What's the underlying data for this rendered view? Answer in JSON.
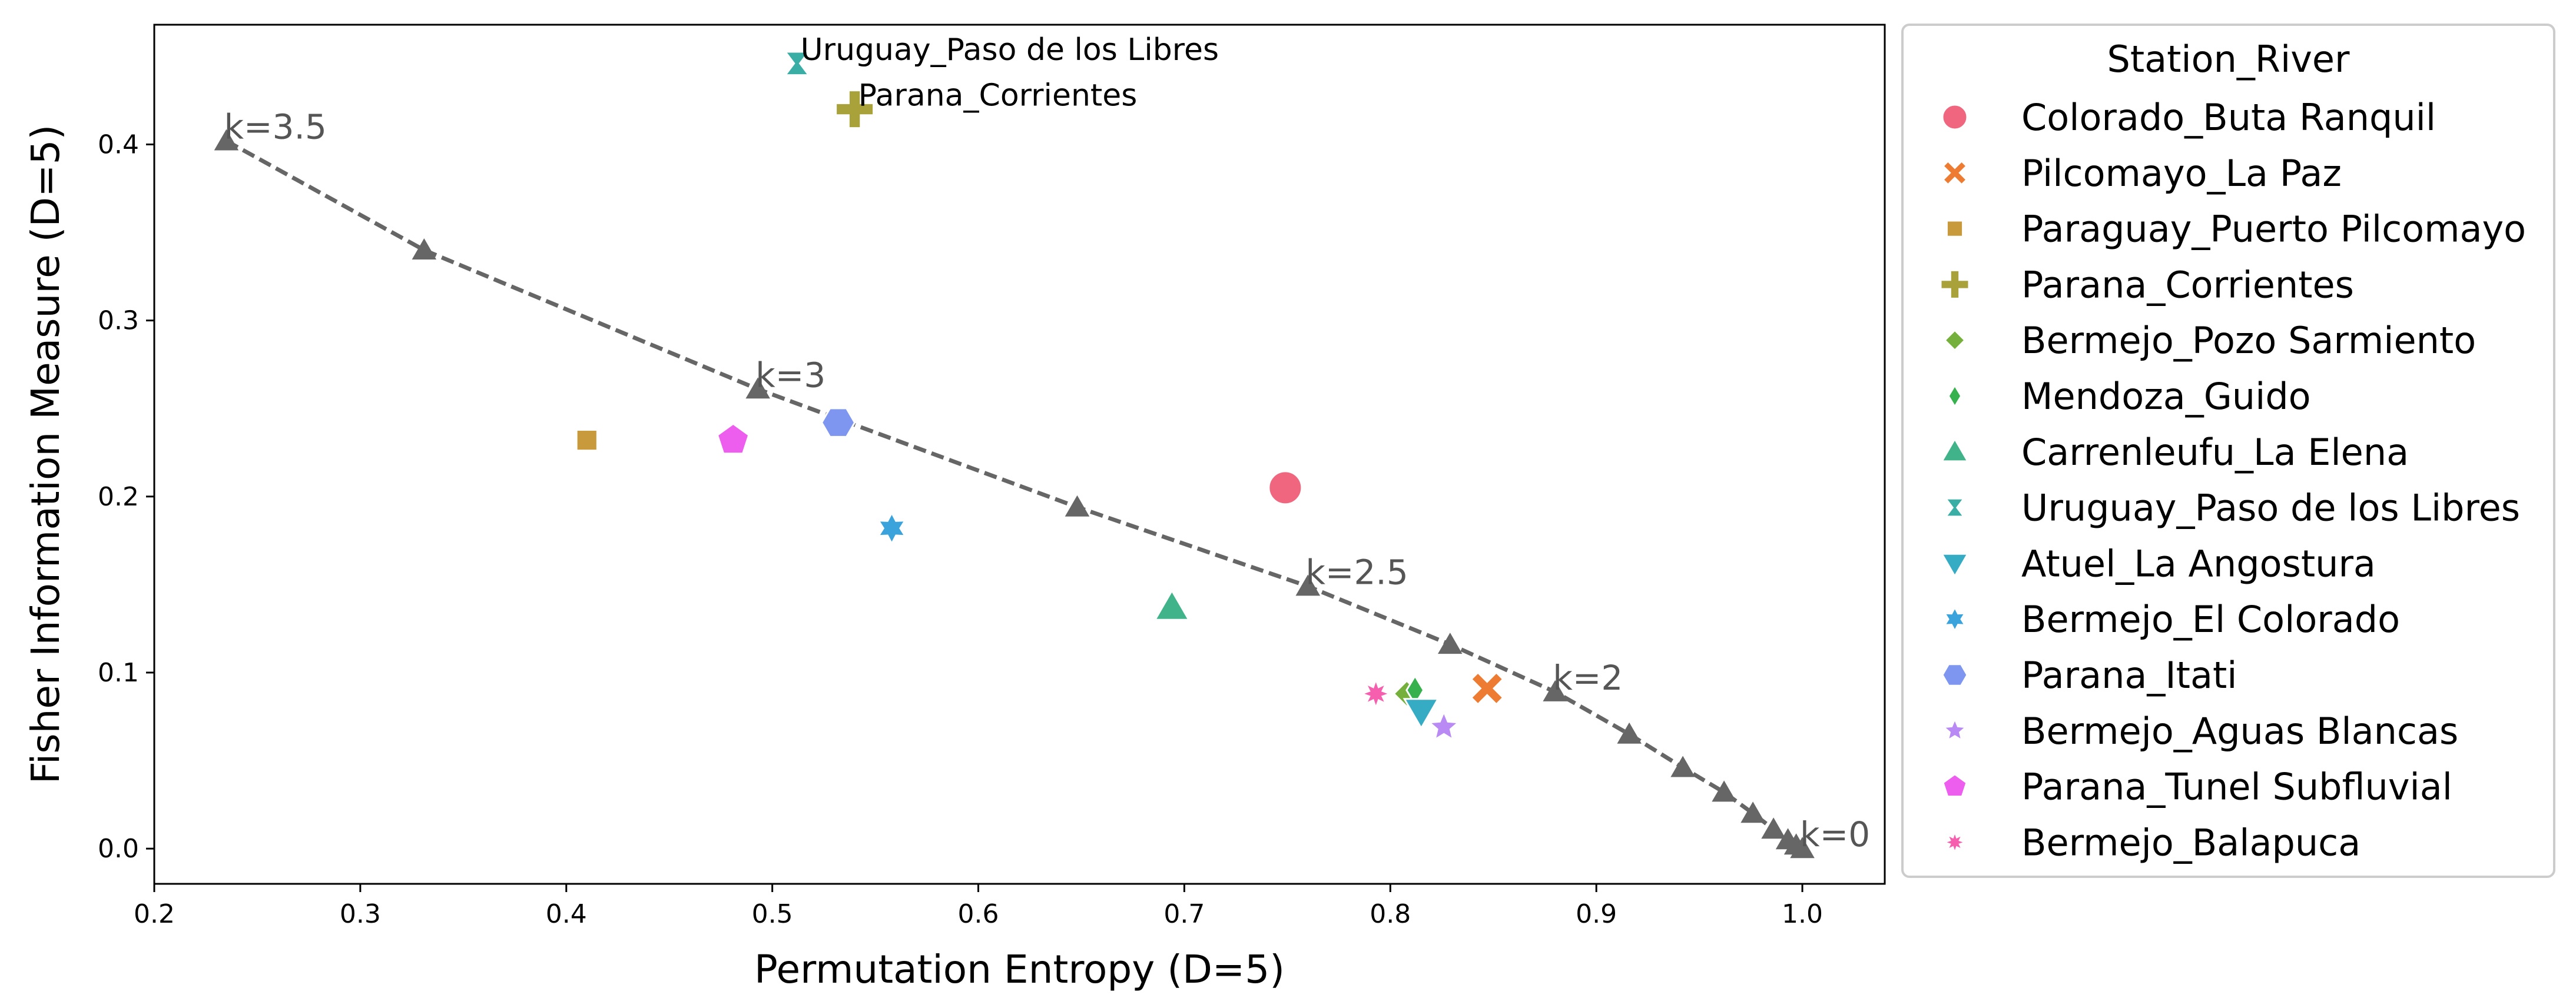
{
  "chart_data": {
    "type": "scatter",
    "xlabel": "Permutation Entropy (D=5)",
    "ylabel": "Fisher Information Measure (D=5)",
    "xlim": [
      0.2,
      1.04
    ],
    "ylim": [
      -0.02,
      0.468
    ],
    "xticks": [
      0.2,
      0.3,
      0.4,
      0.5,
      0.6,
      0.7,
      0.8,
      0.9,
      1.0
    ],
    "yticks": [
      0.0,
      0.1,
      0.2,
      0.3,
      0.4
    ],
    "xtick_labels": [
      "0.2",
      "0.3",
      "0.4",
      "0.5",
      "0.6",
      "0.7",
      "0.8",
      "0.9",
      "1.0"
    ],
    "ytick_labels": [
      "0.0",
      "0.1",
      "0.2",
      "0.3",
      "0.4"
    ],
    "reference_curve": {
      "color": "#666666",
      "style": "dashed",
      "points": [
        {
          "x": 0.235,
          "y": 0.402
        },
        {
          "x": 0.331,
          "y": 0.34
        },
        {
          "x": 0.493,
          "y": 0.261
        },
        {
          "x": 0.648,
          "y": 0.194
        },
        {
          "x": 0.76,
          "y": 0.149
        },
        {
          "x": 0.829,
          "y": 0.116
        },
        {
          "x": 0.88,
          "y": 0.089
        },
        {
          "x": 0.916,
          "y": 0.065
        },
        {
          "x": 0.942,
          "y": 0.046
        },
        {
          "x": 0.962,
          "y": 0.032
        },
        {
          "x": 0.976,
          "y": 0.02
        },
        {
          "x": 0.986,
          "y": 0.011
        },
        {
          "x": 0.993,
          "y": 0.005
        },
        {
          "x": 0.997,
          "y": 0.002
        },
        {
          "x": 1.0,
          "y": 0.0
        }
      ],
      "labels": [
        {
          "x": 0.235,
          "y": 0.402,
          "text": "k=3.5"
        },
        {
          "x": 0.493,
          "y": 0.261,
          "text": "k=3"
        },
        {
          "x": 0.76,
          "y": 0.149,
          "text": "k=2.5"
        },
        {
          "x": 0.88,
          "y": 0.089,
          "text": "k=2"
        },
        {
          "x": 1.0,
          "y": 0.0,
          "text": "k=0"
        }
      ]
    },
    "series": [
      {
        "name": "Colorado_Buta Ranquil",
        "marker": "circle",
        "color": "#f0667f",
        "x": 0.749,
        "y": 0.205
      },
      {
        "name": "Pilcomayo_La Paz",
        "marker": "x",
        "color": "#ee7b32",
        "x": 0.847,
        "y": 0.091
      },
      {
        "name": "Paraguay_Puerto Pilcomayo",
        "marker": "square",
        "color": "#c99a3c",
        "x": 0.41,
        "y": 0.232
      },
      {
        "name": "Parana_Corrientes",
        "marker": "plus",
        "color": "#a9a23a",
        "x": 0.54,
        "y": 0.42
      },
      {
        "name": "Bermejo_Pozo Sarmiento",
        "marker": "diamond",
        "color": "#76b03c",
        "x": 0.808,
        "y": 0.088
      },
      {
        "name": "Mendoza_Guido",
        "marker": "thin-diamond",
        "color": "#36b14e",
        "x": 0.812,
        "y": 0.09
      },
      {
        "name": "Carrenleufu_La Elena",
        "marker": "triangle-up",
        "color": "#40b38a",
        "x": 0.694,
        "y": 0.137
      },
      {
        "name": "Uruguay_Paso de los Libres",
        "marker": "hourglass",
        "color": "#3aada4",
        "x": 0.512,
        "y": 0.446
      },
      {
        "name": "Atuel_La Angostura",
        "marker": "triangle-down",
        "color": "#36acc4",
        "x": 0.815,
        "y": 0.078
      },
      {
        "name": "Bermejo_El Colorado",
        "marker": "star6",
        "color": "#3aa3dc",
        "x": 0.558,
        "y": 0.182
      },
      {
        "name": "Parana_Itati",
        "marker": "hexagon",
        "color": "#7f96f0",
        "x": 0.532,
        "y": 0.242
      },
      {
        "name": "Bermejo_Aguas Blancas",
        "marker": "star5",
        "color": "#b98af4",
        "x": 0.826,
        "y": 0.069
      },
      {
        "name": "Parana_Tunel Subfluvial",
        "marker": "pentagon",
        "color": "#ed5eef",
        "x": 0.481,
        "y": 0.232
      },
      {
        "name": "Bermejo_Balapuca",
        "marker": "star8",
        "color": "#f55fae",
        "x": 0.793,
        "y": 0.088
      }
    ],
    "annotations": [
      {
        "text": "Uruguay_Paso de los Libres",
        "x": 0.512,
        "y": 0.446
      },
      {
        "text": "Parana_Corrientes",
        "x": 0.54,
        "y": 0.42
      }
    ],
    "legend": {
      "title": "Station_River",
      "placement": "outside-right"
    }
  }
}
